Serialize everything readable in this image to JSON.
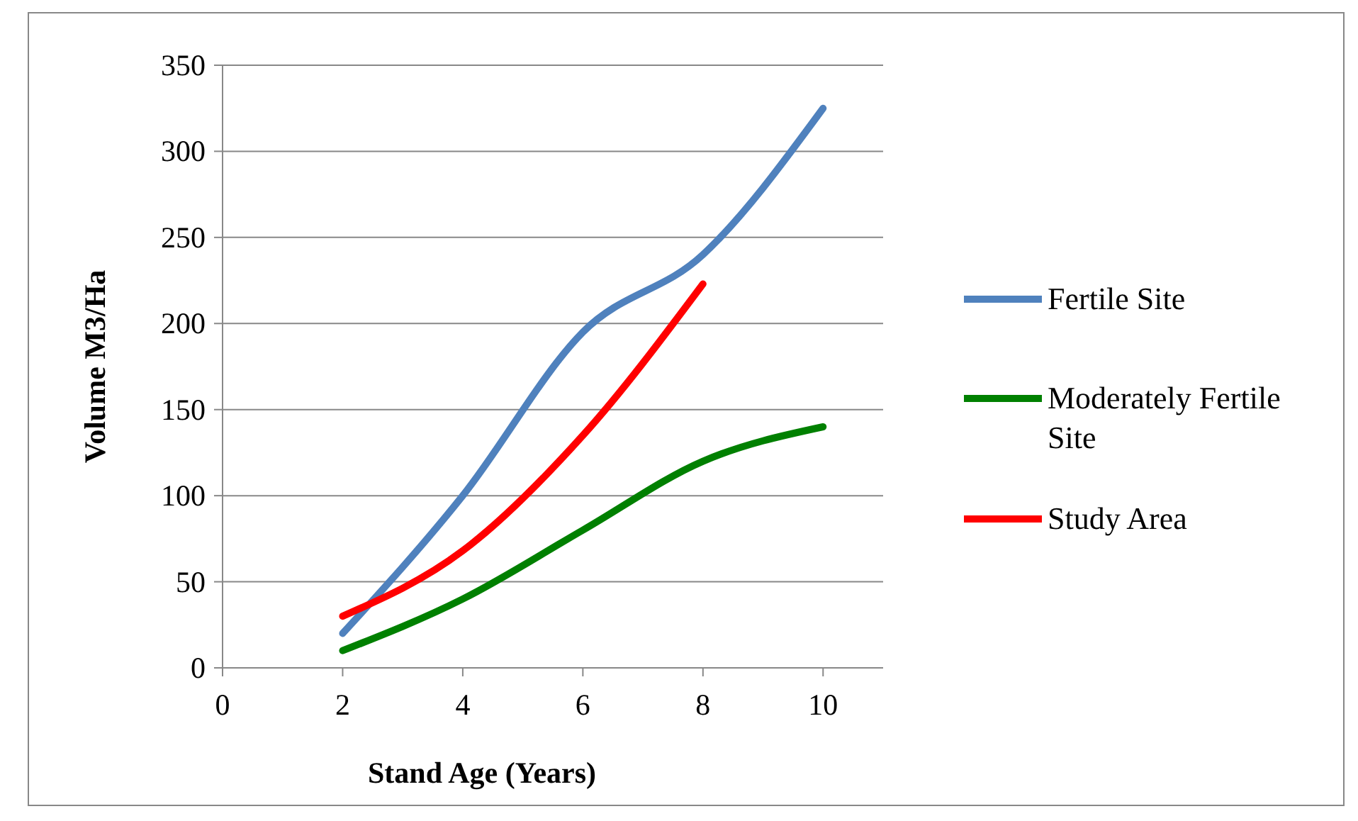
{
  "chart_data": {
    "type": "line",
    "xlabel": "Stand Age (Years)",
    "ylabel": "Volume M3/Ha",
    "xlim": [
      0,
      11
    ],
    "xticks": [
      0,
      2,
      4,
      6,
      8,
      10
    ],
    "ylim": [
      0,
      350
    ],
    "yticks": [
      0,
      50,
      100,
      150,
      200,
      250,
      300,
      350
    ],
    "grid": "y",
    "legend": "right",
    "marker": "none",
    "line_style": "solid",
    "series": [
      {
        "name": "Fertile Site",
        "color": "#4f81bd",
        "x": [
          2,
          4,
          6,
          8,
          10
        ],
        "values": [
          20,
          100,
          195,
          240,
          325
        ]
      },
      {
        "name": "Moderately Fertile Site",
        "color": "#008000",
        "x": [
          2,
          4,
          6,
          8,
          10
        ],
        "values": [
          10,
          40,
          80,
          120,
          140
        ]
      },
      {
        "name": "Study Area",
        "color": "#ff0000",
        "x": [
          2,
          4,
          6,
          8
        ],
        "values": [
          30,
          68,
          135,
          223
        ]
      }
    ]
  }
}
